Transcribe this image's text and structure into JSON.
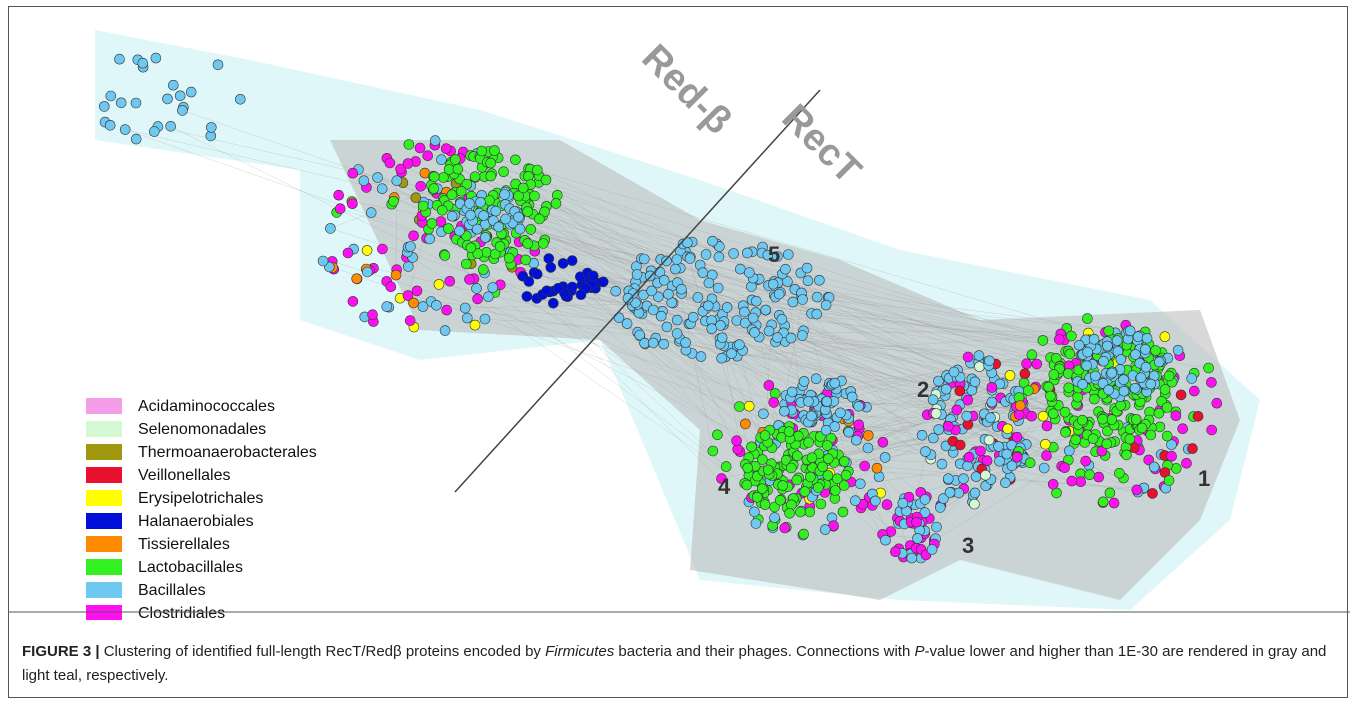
{
  "figure": {
    "divider_labels": {
      "left": "Red-β",
      "right": "RecT"
    },
    "cluster_labels": [
      "1",
      "2",
      "3",
      "4",
      "5"
    ],
    "legend": [
      {
        "label": "Acidaminococcales",
        "color": "#f59ce8"
      },
      {
        "label": "Selenomonadales",
        "color": "#d4f8d4"
      },
      {
        "label": "Thermoanaerobacterales",
        "color": "#a09810"
      },
      {
        "label": "Veillonellales",
        "color": "#e8102e"
      },
      {
        "label": "Erysipelotrichales",
        "color": "#ffff00"
      },
      {
        "label": "Halanaerobiales",
        "color": "#0010d8"
      },
      {
        "label": "Tissierellales",
        "color": "#ff8c00"
      },
      {
        "label": "Lactobacillales",
        "color": "#33f020"
      },
      {
        "label": "Bacillales",
        "color": "#6ec8f0"
      },
      {
        "label": "Clostridiales",
        "color": "#ff10f0"
      }
    ],
    "caption": {
      "label": "FIGURE 3 |",
      "text_1": " Clustering of identified full-length RecT/Redβ proteins encoded by ",
      "italic_1": "Firmicutes",
      "text_2": " bacteria and their phages. Connections with ",
      "italic_2": "P",
      "text_3": "-value lower and higher than 1E-30 are rendered in gray and light teal, respectively."
    }
  }
}
